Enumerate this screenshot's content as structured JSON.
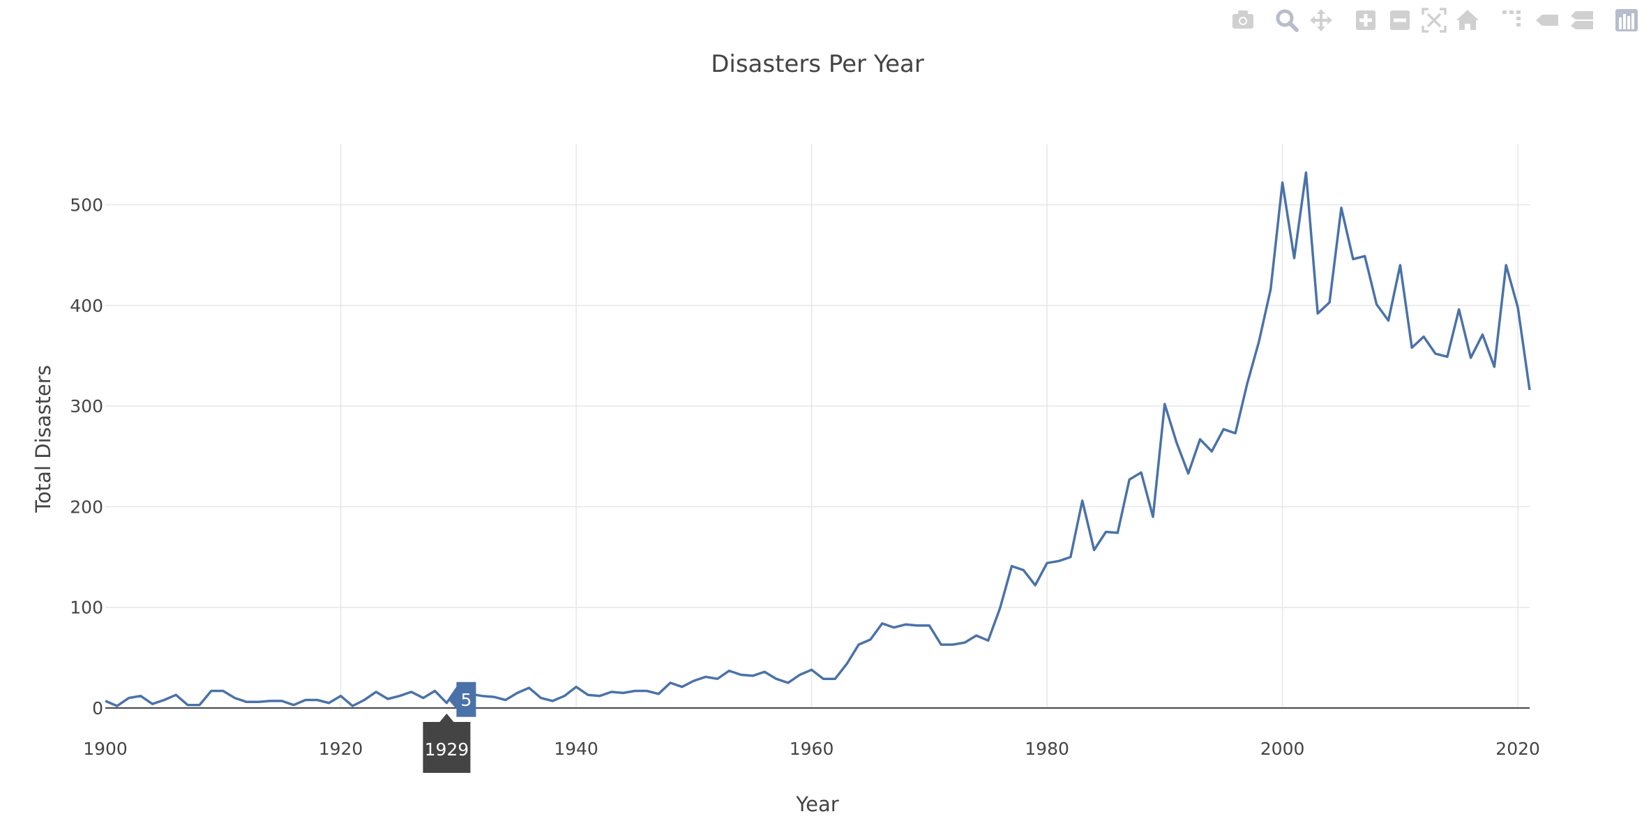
{
  "colors": {
    "line": "#4a72a8",
    "grid": "#e6e6e6",
    "zeroline": "#444444",
    "text": "#444444",
    "modebar": "#d0d0d0",
    "modebar_active": "#b7bdcc",
    "hover_x_bg": "#444444",
    "hover_y_bg": "#4a72a8"
  },
  "modebar": [
    {
      "icon": "camera-icon",
      "label": "Download plot as a png"
    },
    {
      "icon": "zoom-icon",
      "label": "Zoom"
    },
    {
      "icon": "pan-icon",
      "label": "Pan"
    },
    {
      "icon": "zoom-in-icon",
      "label": "Zoom in"
    },
    {
      "icon": "zoom-out-icon",
      "label": "Zoom out"
    },
    {
      "icon": "autoscale-icon",
      "label": "Autoscale"
    },
    {
      "icon": "reset-axes-icon",
      "label": "Reset axes"
    },
    {
      "icon": "spike-lines-icon",
      "label": "Toggle Spike Lines"
    },
    {
      "icon": "hover-closest-icon",
      "label": "Show closest data on hover"
    },
    {
      "icon": "hover-compare-icon",
      "label": "Compare data on hover"
    },
    {
      "icon": "plotly-logo-icon",
      "label": "Produced with Plotly"
    }
  ],
  "hover": {
    "x_label": "1929",
    "y_label": "5",
    "x": 1929,
    "y": 5
  },
  "chart_data": {
    "type": "line",
    "title": "Disasters Per Year",
    "xlabel": "Year",
    "ylabel": "Total Disasters",
    "xlim": [
      1900,
      2021
    ],
    "ylim": [
      0,
      560
    ],
    "x_ticks": [
      1900,
      1920,
      1940,
      1960,
      1980,
      2000,
      2020
    ],
    "y_ticks": [
      0,
      100,
      200,
      300,
      400,
      500
    ],
    "grid": true,
    "legend": "none",
    "series": [
      {
        "x": [
          1900,
          1901,
          1902,
          1903,
          1904,
          1905,
          1906,
          1907,
          1908,
          1909,
          1910,
          1911,
          1912,
          1913,
          1914,
          1915,
          1916,
          1917,
          1918,
          1919,
          1920,
          1921,
          1922,
          1923,
          1924,
          1925,
          1926,
          1927,
          1928,
          1929,
          1930,
          1931,
          1932,
          1933,
          1934,
          1935,
          1936,
          1937,
          1938,
          1939,
          1940,
          1941,
          1942,
          1943,
          1944,
          1945,
          1946,
          1947,
          1948,
          1949,
          1950,
          1951,
          1952,
          1953,
          1954,
          1955,
          1956,
          1957,
          1958,
          1959,
          1960,
          1961,
          1962,
          1963,
          1964,
          1965,
          1966,
          1967,
          1968,
          1969,
          1970,
          1971,
          1972,
          1973,
          1974,
          1975,
          1976,
          1977,
          1978,
          1979,
          1980,
          1981,
          1982,
          1983,
          1984,
          1985,
          1986,
          1987,
          1988,
          1989,
          1990,
          1991,
          1992,
          1993,
          1994,
          1995,
          1996,
          1997,
          1998,
          1999,
          2000,
          2001,
          2002,
          2003,
          2004,
          2005,
          2006,
          2007,
          2008,
          2009,
          2010,
          2011,
          2012,
          2013,
          2014,
          2015,
          2016,
          2017,
          2018,
          2019,
          2020,
          2021
        ],
        "y": [
          7,
          2,
          10,
          12,
          4,
          8,
          13,
          3,
          3,
          17,
          17,
          10,
          6,
          6,
          7,
          7,
          3,
          8,
          8,
          5,
          12,
          2,
          8,
          16,
          9,
          12,
          16,
          10,
          17,
          5,
          22,
          14,
          12,
          11,
          8,
          15,
          20,
          10,
          7,
          12,
          21,
          13,
          12,
          16,
          15,
          17,
          17,
          14,
          25,
          21,
          27,
          31,
          29,
          37,
          33,
          32,
          36,
          29,
          25,
          33,
          38,
          29,
          29,
          44,
          63,
          68,
          84,
          80,
          83,
          82,
          82,
          63,
          63,
          65,
          72,
          67,
          99,
          141,
          137,
          122,
          144,
          146,
          150,
          206,
          157,
          175,
          174,
          227,
          234,
          190,
          302,
          264,
          233,
          267,
          255,
          277,
          273,
          322,
          364,
          416,
          522,
          447,
          532,
          392,
          403,
          497,
          446,
          449,
          401,
          385,
          440,
          358,
          369,
          352,
          349,
          396,
          348,
          371,
          339,
          440,
          398,
          316
        ]
      }
    ]
  }
}
